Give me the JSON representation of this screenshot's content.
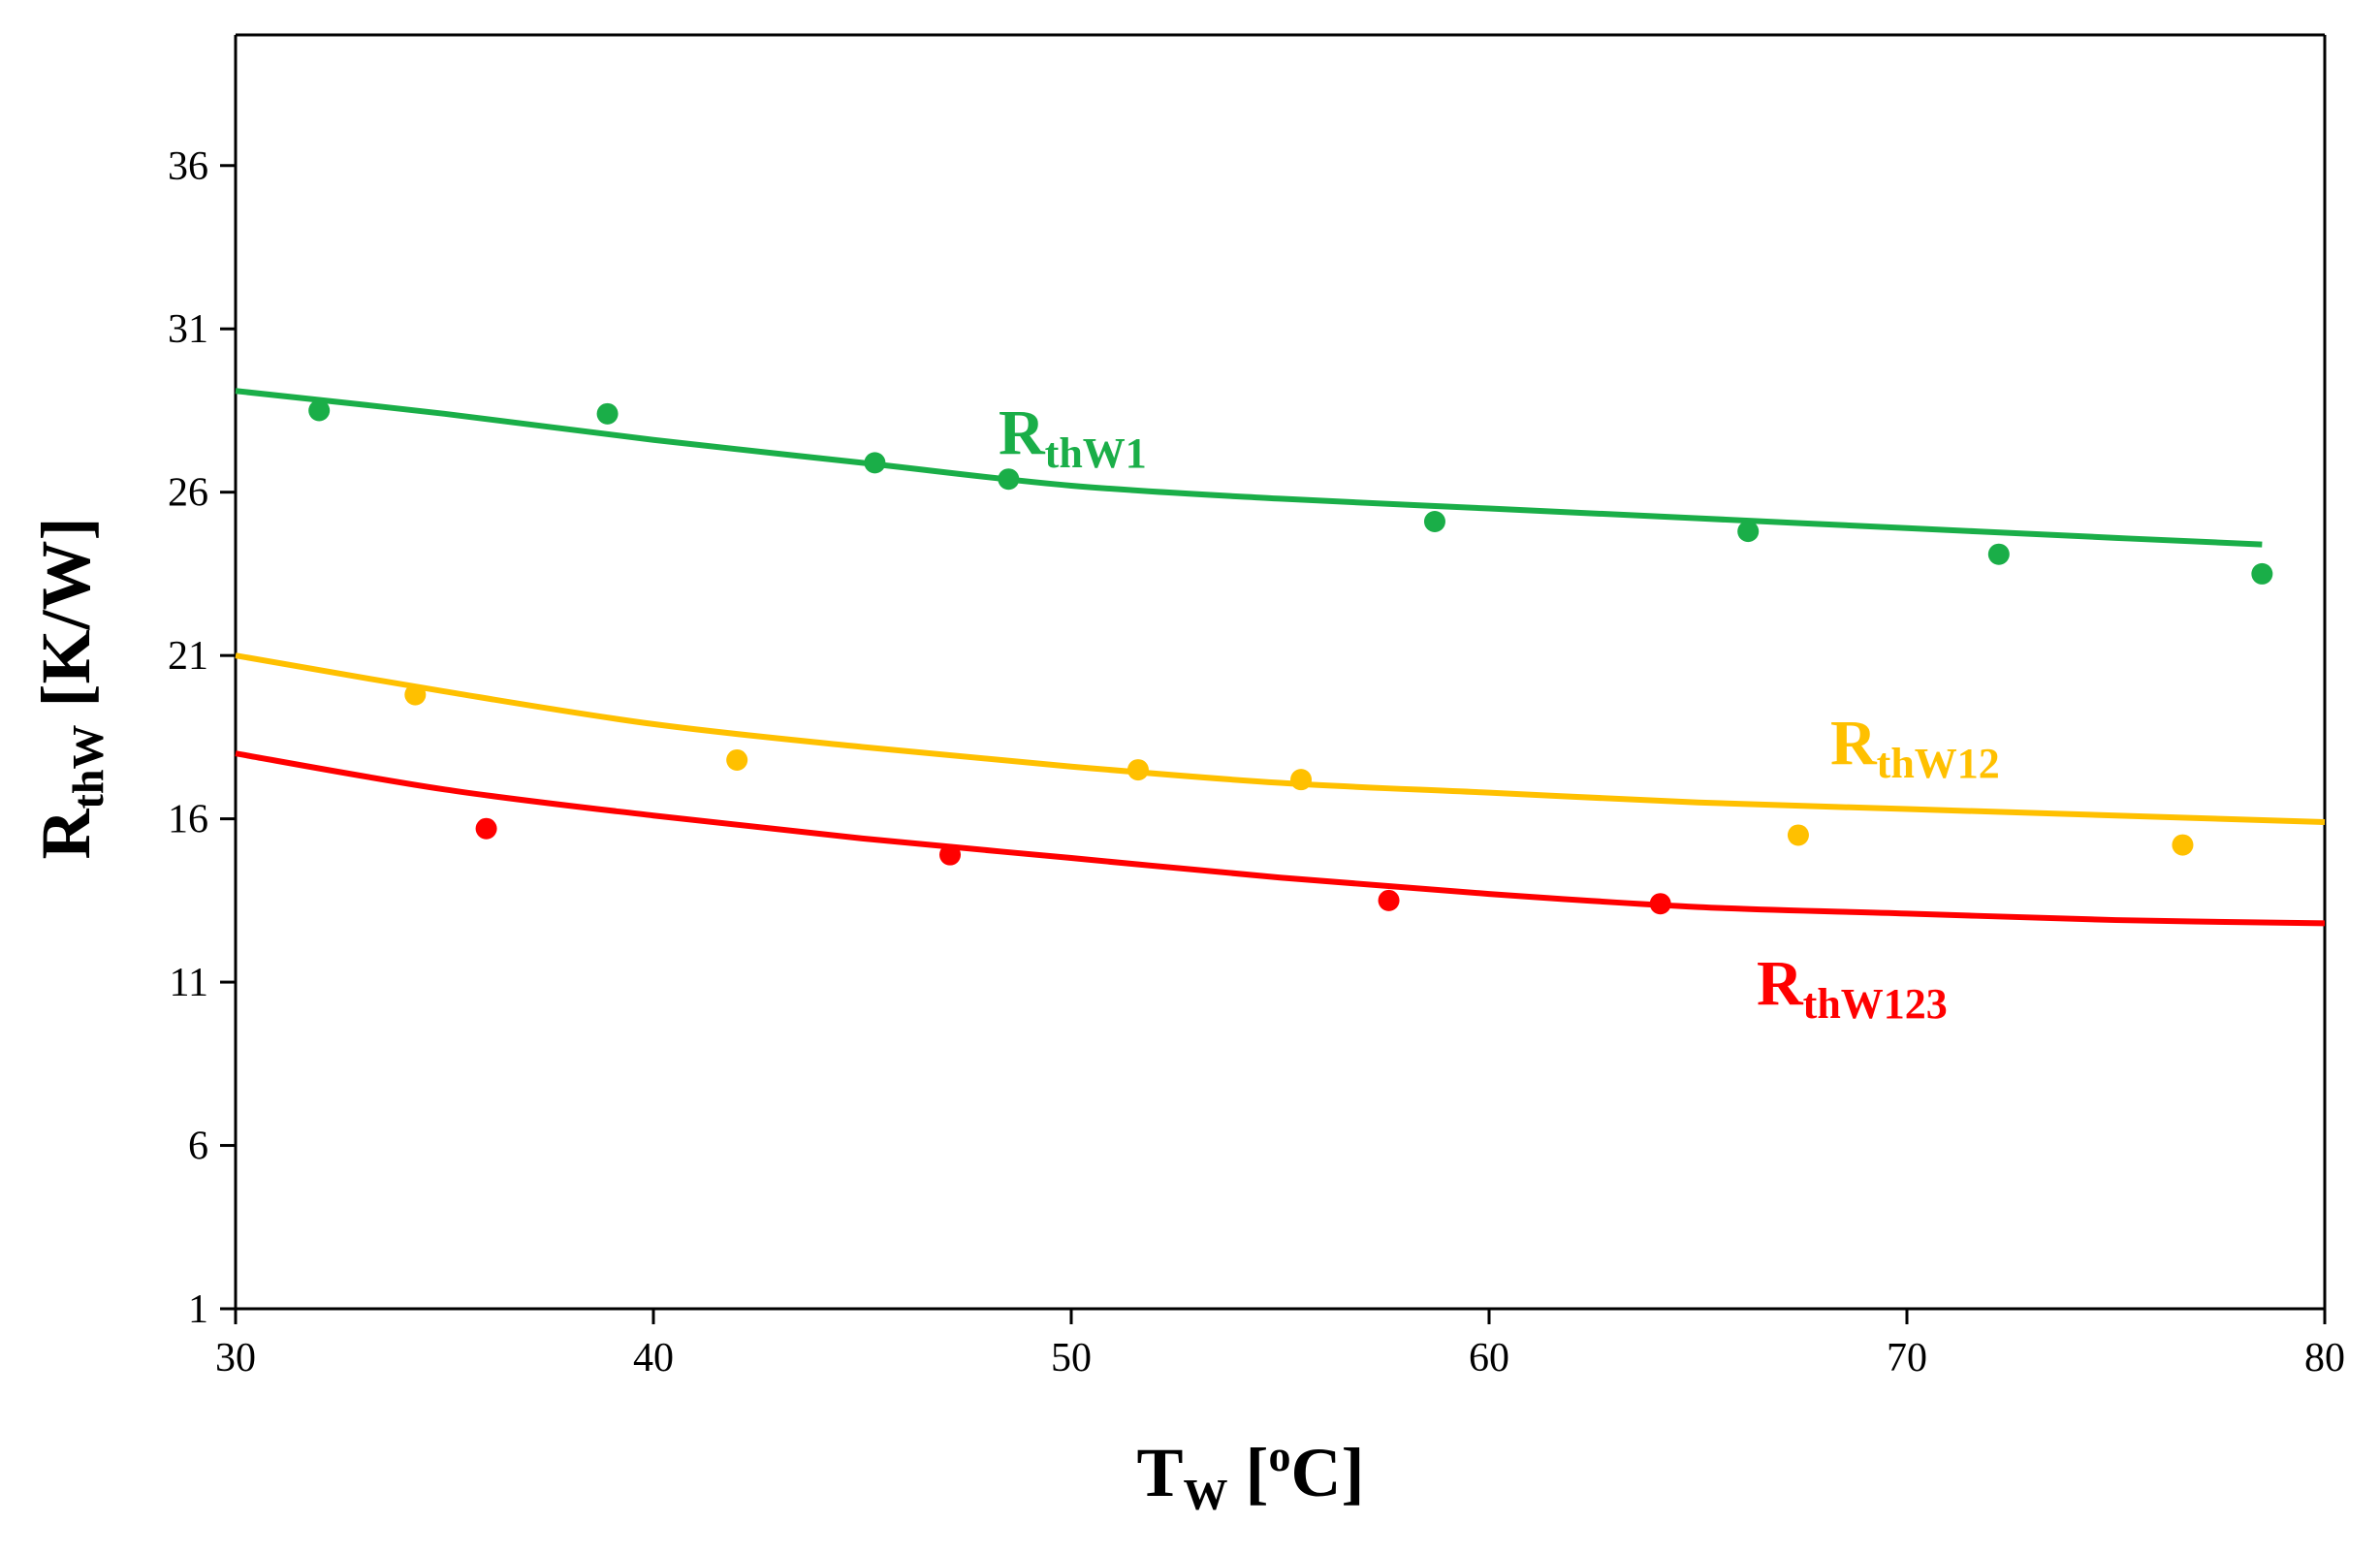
{
  "chart_data": {
    "type": "scatter",
    "title": "",
    "xlabel": {
      "main": "T",
      "sub": "W",
      "rest_open": " [",
      "sup": "o",
      "rest_close": "C]"
    },
    "ylabel": {
      "main": "R",
      "sub": "thW",
      "rest": " [K/W]"
    },
    "xlim": [
      30,
      80
    ],
    "ylim": [
      1,
      40
    ],
    "xticks": [
      30,
      40,
      50,
      60,
      70,
      80
    ],
    "yticks": [
      1,
      6,
      11,
      16,
      21,
      26,
      31,
      36
    ],
    "grid": false,
    "legend": "inline labels",
    "series": [
      {
        "name": "RthW1",
        "label_main": "R",
        "label_sub": "thW1",
        "color": "#1aae48",
        "points": [
          {
            "x": 32.0,
            "y": 28.5
          },
          {
            "x": 38.9,
            "y": 28.4
          },
          {
            "x": 45.3,
            "y": 26.9
          },
          {
            "x": 48.5,
            "y": 26.4
          },
          {
            "x": 58.7,
            "y": 25.1
          },
          {
            "x": 66.2,
            "y": 24.8
          },
          {
            "x": 72.2,
            "y": 24.1
          },
          {
            "x": 78.5,
            "y": 23.5
          }
        ],
        "fit": [
          {
            "x": 30,
            "y": 29.1
          },
          {
            "x": 35,
            "y": 28.4
          },
          {
            "x": 40,
            "y": 27.6
          },
          {
            "x": 45,
            "y": 26.9
          },
          {
            "x": 50,
            "y": 26.2
          },
          {
            "x": 55,
            "y": 25.8
          },
          {
            "x": 60,
            "y": 25.5
          },
          {
            "x": 65,
            "y": 25.2
          },
          {
            "x": 70,
            "y": 24.9
          },
          {
            "x": 75,
            "y": 24.6
          },
          {
            "x": 78.5,
            "y": 24.4
          }
        ]
      },
      {
        "name": "RthW12",
        "label_main": "R",
        "label_sub": "thW12",
        "color": "#ffc000",
        "points": [
          {
            "x": 34.3,
            "y": 19.8
          },
          {
            "x": 42.0,
            "y": 17.8
          },
          {
            "x": 51.6,
            "y": 17.5
          },
          {
            "x": 55.5,
            "y": 17.2
          },
          {
            "x": 67.4,
            "y": 15.5
          },
          {
            "x": 76.6,
            "y": 15.2
          }
        ],
        "fit": [
          {
            "x": 30,
            "y": 21.0
          },
          {
            "x": 35,
            "y": 19.9
          },
          {
            "x": 40,
            "y": 18.9
          },
          {
            "x": 45,
            "y": 18.2
          },
          {
            "x": 50,
            "y": 17.6
          },
          {
            "x": 55,
            "y": 17.1
          },
          {
            "x": 60,
            "y": 16.8
          },
          {
            "x": 65,
            "y": 16.5
          },
          {
            "x": 70,
            "y": 16.3
          },
          {
            "x": 75,
            "y": 16.1
          },
          {
            "x": 80,
            "y": 15.9
          }
        ]
      },
      {
        "name": "RthW123",
        "label_main": "R",
        "label_sub": "thW123",
        "color": "#ff0000",
        "points": [
          {
            "x": 36.0,
            "y": 15.7
          },
          {
            "x": 47.1,
            "y": 14.9
          },
          {
            "x": 57.6,
            "y": 13.5
          },
          {
            "x": 64.1,
            "y": 13.4
          }
        ],
        "fit": [
          {
            "x": 30,
            "y": 18.0
          },
          {
            "x": 35,
            "y": 16.9
          },
          {
            "x": 40,
            "y": 16.1
          },
          {
            "x": 45,
            "y": 15.4
          },
          {
            "x": 50,
            "y": 14.8
          },
          {
            "x": 55,
            "y": 14.2
          },
          {
            "x": 60,
            "y": 13.7
          },
          {
            "x": 65,
            "y": 13.3
          },
          {
            "x": 70,
            "y": 13.1
          },
          {
            "x": 75,
            "y": 12.9
          },
          {
            "x": 80,
            "y": 12.8
          }
        ]
      }
    ]
  }
}
